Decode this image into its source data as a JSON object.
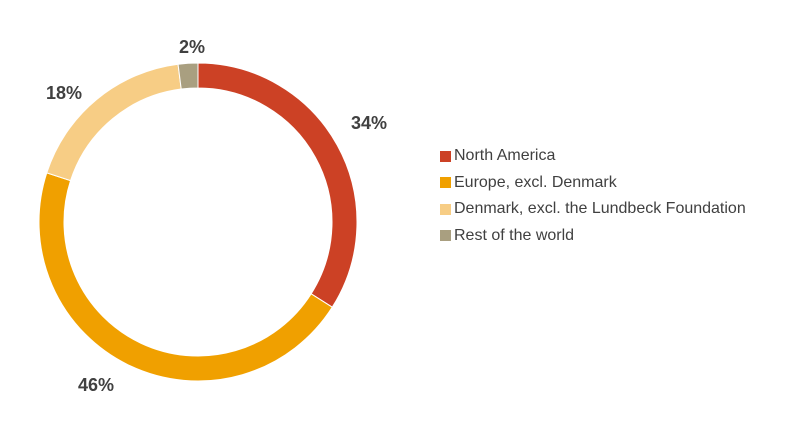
{
  "chart_data": {
    "type": "pie",
    "variant": "donut",
    "categories": [
      "North America",
      "Europe, excl. Denmark",
      "Denmark, excl. the Lundbeck Foundation",
      "Rest of the world"
    ],
    "values": [
      34,
      46,
      18,
      2
    ],
    "value_labels": [
      "34%",
      "46%",
      "18%",
      "2%"
    ],
    "colors": [
      "#cc4125",
      "#f0a000",
      "#f7cd85",
      "#a99f80"
    ],
    "title": "",
    "legend_position": "right"
  }
}
